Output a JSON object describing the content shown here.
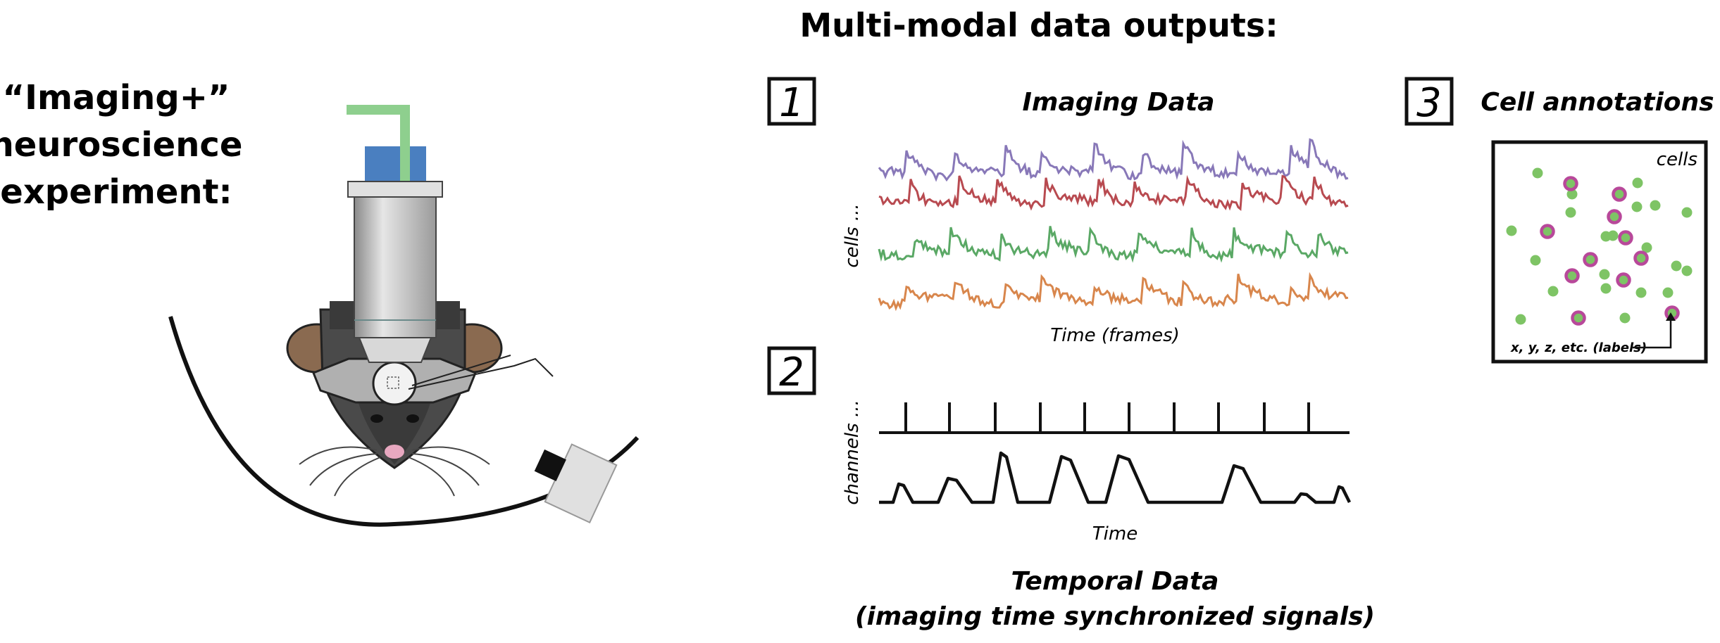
{
  "experiment_title": [
    "“Imaging+”",
    "neuroscience",
    "experiment:"
  ],
  "outputs_title": "Multi-modal data outputs:",
  "panel1": {
    "number": "1",
    "title": "Imaging Data",
    "ylabel": "cells ...",
    "xlabel": "Time (frames)"
  },
  "panel2": {
    "number": "2",
    "ylabel": "channels ...",
    "xlabel": "Time",
    "caption": [
      "Temporal Data",
      "(imaging time synchronized signals)"
    ]
  },
  "panel3": {
    "number": "3",
    "title": "Cell annotations",
    "corner_label": "cells",
    "labels_text": "x, y, z, etc. (labels)"
  },
  "colors": {
    "trace_purple": "#8878b8",
    "trace_red": "#b84a50",
    "trace_green": "#5aa865",
    "trace_orange": "#d8864c",
    "cell_green": "#7ec465",
    "cell_ring": "#b8489a",
    "laser": "#8ecf8e",
    "filter": "#4a7fc0"
  }
}
